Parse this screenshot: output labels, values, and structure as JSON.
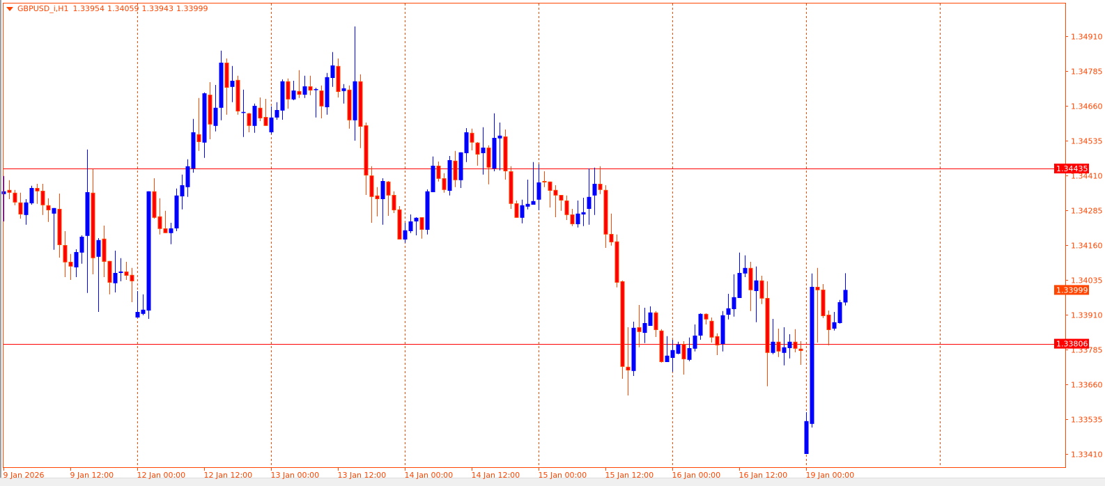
{
  "header": {
    "symbol_timeframe": "GBPUSD_i,H1",
    "ohlc": [
      "1.33954",
      "1.34059",
      "1.33943",
      "1.33999"
    ],
    "menu_icon": "triangle-down-icon"
  },
  "colors": {
    "frame": "#ff4500",
    "bull": "#0000ff",
    "bear_body": "#ff0000",
    "bear_outline": "#ff4500",
    "level_line": "#ff0000",
    "current_price_bg": "#ff4500",
    "axis_text": "#ff4500"
  },
  "chart_data": {
    "type": "candlestick",
    "title": "GBPUSD_i,H1",
    "timeframe": "H1",
    "grid": "vertical dashed day separators",
    "ylim": [
      1.3336,
      1.3503
    ],
    "y_ticks": [
      "1.34910",
      "1.34785",
      "1.34660",
      "1.34535",
      "1.34410",
      "1.34285",
      "1.34160",
      "1.34035",
      "1.33910",
      "1.33785",
      "1.33660",
      "1.33535",
      "1.33410"
    ],
    "x_ticks": [
      {
        "label": "9 Jan 2026",
        "bar": 0
      },
      {
        "label": "9 Jan 12:00",
        "bar": 12
      },
      {
        "label": "12 Jan 00:00",
        "bar": 24
      },
      {
        "label": "12 Jan 12:00",
        "bar": 36
      },
      {
        "label": "13 Jan 00:00",
        "bar": 48
      },
      {
        "label": "13 Jan 12:00",
        "bar": 60
      },
      {
        "label": "14 Jan 00:00",
        "bar": 72
      },
      {
        "label": "14 Jan 12:00",
        "bar": 84
      },
      {
        "label": "15 Jan 00:00",
        "bar": 96
      },
      {
        "label": "15 Jan 12:00",
        "bar": 108
      },
      {
        "label": "16 Jan 00:00",
        "bar": 120
      },
      {
        "label": "16 Jan 12:00",
        "bar": 132
      },
      {
        "label": "19 Jan 00:00",
        "bar": 144
      }
    ],
    "day_separator_bars": [
      24,
      48,
      72,
      96,
      120,
      144,
      168
    ],
    "horizontal_levels": [
      {
        "price": "1.34435"
      },
      {
        "price": "1.33806"
      }
    ],
    "current_price": "1.33999",
    "candles_ohlc": [
      [
        1.34343,
        1.34408,
        1.34245,
        1.34353
      ],
      [
        1.34358,
        1.34393,
        1.34325,
        1.34348
      ],
      [
        1.34348,
        1.34358,
        1.34303,
        1.34313
      ],
      [
        1.34313,
        1.34348,
        1.34255,
        1.3427
      ],
      [
        1.34268,
        1.34325,
        1.34233,
        1.34313
      ],
      [
        1.3431,
        1.34373,
        1.34305,
        1.34365
      ],
      [
        1.34365,
        1.3438,
        1.34308,
        1.34353
      ],
      [
        1.34355,
        1.3438,
        1.34268,
        1.34303
      ],
      [
        1.34303,
        1.34328,
        1.34243,
        1.34285
      ],
      [
        1.34273,
        1.34293,
        1.34143,
        1.34293
      ],
      [
        1.3429,
        1.34345,
        1.34115,
        1.3416
      ],
      [
        1.3416,
        1.3421,
        1.34045,
        1.34098
      ],
      [
        1.341,
        1.34128,
        1.34035,
        1.34083
      ],
      [
        1.3408,
        1.34145,
        1.34045,
        1.34135
      ],
      [
        1.34133,
        1.34195,
        1.34093,
        1.3419
      ],
      [
        1.34193,
        1.34503,
        1.33988,
        1.3435
      ],
      [
        1.34348,
        1.34433,
        1.34055,
        1.34113
      ],
      [
        1.34118,
        1.34185,
        1.3392,
        1.34178
      ],
      [
        1.34183,
        1.3423,
        1.34045,
        1.341
      ],
      [
        1.34103,
        1.34103,
        1.33983,
        1.34025
      ],
      [
        1.34023,
        1.3414,
        1.3399,
        1.3406
      ],
      [
        1.3406,
        1.34113,
        1.3403,
        1.34065
      ],
      [
        1.34065,
        1.341,
        1.34035,
        1.3405
      ],
      [
        1.34053,
        1.34078,
        1.33955,
        1.3403
      ],
      [
        1.339,
        1.33995,
        1.339,
        1.3392
      ],
      [
        1.33913,
        1.33983,
        1.33908,
        1.33928
      ],
      [
        1.33925,
        1.34353,
        1.33895,
        1.34353
      ],
      [
        1.34353,
        1.344,
        1.34255,
        1.34258
      ],
      [
        1.34263,
        1.34328,
        1.34198,
        1.34218
      ],
      [
        1.3422,
        1.34283,
        1.34203,
        1.34203
      ],
      [
        1.34203,
        1.3424,
        1.34163,
        1.3422
      ],
      [
        1.3422,
        1.34363,
        1.3421,
        1.34338
      ],
      [
        1.34335,
        1.34413,
        1.34288,
        1.34375
      ],
      [
        1.34368,
        1.34468,
        1.34333,
        1.34443
      ],
      [
        1.34435,
        1.34613,
        1.3442,
        1.34565
      ],
      [
        1.34558,
        1.34688,
        1.34498,
        1.3453
      ],
      [
        1.34528,
        1.34708,
        1.34473,
        1.34705
      ],
      [
        1.347,
        1.34745,
        1.3454,
        1.34593
      ],
      [
        1.34588,
        1.34735,
        1.34568,
        1.34653
      ],
      [
        1.34653,
        1.34858,
        1.34608,
        1.34815
      ],
      [
        1.34815,
        1.3483,
        1.34628,
        1.34725
      ],
      [
        1.34728,
        1.34803,
        1.34673,
        1.3475
      ],
      [
        1.34753,
        1.34768,
        1.34628,
        1.3464
      ],
      [
        1.34635,
        1.34718,
        1.34548,
        1.34638
      ],
      [
        1.34633,
        1.34635,
        1.34565,
        1.34588
      ],
      [
        1.34588,
        1.34668,
        1.34563,
        1.3466
      ],
      [
        1.34653,
        1.3469,
        1.34605,
        1.34615
      ],
      [
        1.3462,
        1.34685,
        1.34588,
        1.34588
      ],
      [
        1.34565,
        1.34658,
        1.34558,
        1.34618
      ],
      [
        1.34618,
        1.34673,
        1.3461,
        1.34645
      ],
      [
        1.34643,
        1.34755,
        1.3461,
        1.34748
      ],
      [
        1.34748,
        1.34758,
        1.3465,
        1.34683
      ],
      [
        1.34683,
        1.3475,
        1.3468,
        1.34715
      ],
      [
        1.34713,
        1.34788,
        1.34688,
        1.347
      ],
      [
        1.347,
        1.34768,
        1.34688,
        1.3473
      ],
      [
        1.3473,
        1.34768,
        1.34698,
        1.34715
      ],
      [
        1.34718,
        1.34725,
        1.34618,
        1.3472
      ],
      [
        1.34715,
        1.34733,
        1.34615,
        1.34658
      ],
      [
        1.34655,
        1.34778,
        1.34628,
        1.34763
      ],
      [
        1.3476,
        1.34853,
        1.34728,
        1.34805
      ],
      [
        1.34803,
        1.3483,
        1.3469,
        1.3471
      ],
      [
        1.34713,
        1.34738,
        1.34668,
        1.34723
      ],
      [
        1.34718,
        1.34733,
        1.34578,
        1.34608
      ],
      [
        1.34608,
        1.34945,
        1.34535,
        1.34748
      ],
      [
        1.34748,
        1.34773,
        1.34508,
        1.34585
      ],
      [
        1.3459,
        1.346,
        1.3434,
        1.3441
      ],
      [
        1.3441,
        1.34443,
        1.3424,
        1.34333
      ],
      [
        1.34338,
        1.34368,
        1.34263,
        1.34325
      ],
      [
        1.34325,
        1.344,
        1.34233,
        1.3439
      ],
      [
        1.34388,
        1.3439,
        1.34265,
        1.34338
      ],
      [
        1.3434,
        1.34353,
        1.34275,
        1.34285
      ],
      [
        1.34288,
        1.343,
        1.3418,
        1.3418
      ],
      [
        1.3418,
        1.3424,
        1.34168,
        1.34213
      ],
      [
        1.3421,
        1.3427,
        1.34203,
        1.34245
      ],
      [
        1.34245,
        1.3426,
        1.34195,
        1.34258
      ],
      [
        1.3426,
        1.3426,
        1.34183,
        1.34215
      ],
      [
        1.34215,
        1.3436,
        1.34198,
        1.34353
      ],
      [
        1.3435,
        1.34478,
        1.3435,
        1.34445
      ],
      [
        1.34445,
        1.3446,
        1.34388,
        1.34398
      ],
      [
        1.344,
        1.34418,
        1.34348,
        1.34358
      ],
      [
        1.34355,
        1.3448,
        1.34338,
        1.34465
      ],
      [
        1.34463,
        1.34498,
        1.34368,
        1.34393
      ],
      [
        1.34393,
        1.34493,
        1.34365,
        1.34493
      ],
      [
        1.3449,
        1.3458,
        1.34458,
        1.34565
      ],
      [
        1.34563,
        1.34578,
        1.345,
        1.34528
      ],
      [
        1.34528,
        1.3453,
        1.34445,
        1.34485
      ],
      [
        1.3449,
        1.34583,
        1.34413,
        1.3451
      ],
      [
        1.3451,
        1.34518,
        1.34378,
        1.34438
      ],
      [
        1.34435,
        1.34633,
        1.34425,
        1.34545
      ],
      [
        1.34543,
        1.346,
        1.34428,
        1.34553
      ],
      [
        1.3455,
        1.34575,
        1.34395,
        1.34425
      ],
      [
        1.34425,
        1.34443,
        1.3429,
        1.34308
      ],
      [
        1.3431,
        1.3432,
        1.34258,
        1.34258
      ],
      [
        1.34258,
        1.34323,
        1.34238,
        1.34303
      ],
      [
        1.34298,
        1.34395,
        1.34288,
        1.34308
      ],
      [
        1.34305,
        1.34458,
        1.34305,
        1.34318
      ],
      [
        1.34323,
        1.3445,
        1.34285,
        1.34385
      ],
      [
        1.3439,
        1.34425,
        1.34368,
        1.34385
      ],
      [
        1.34388,
        1.34388,
        1.34295,
        1.34355
      ],
      [
        1.34358,
        1.34375,
        1.3426,
        1.34338
      ],
      [
        1.3434,
        1.3434,
        1.34283,
        1.3432
      ],
      [
        1.3432,
        1.34338,
        1.3425,
        1.34268
      ],
      [
        1.3427,
        1.3429,
        1.34228,
        1.34235
      ],
      [
        1.34235,
        1.3432,
        1.34223,
        1.34273
      ],
      [
        1.3427,
        1.3433,
        1.34228,
        1.34278
      ],
      [
        1.3429,
        1.34435,
        1.34233,
        1.34333
      ],
      [
        1.34338,
        1.34438,
        1.34268,
        1.3438
      ],
      [
        1.3438,
        1.34443,
        1.34343,
        1.34358
      ],
      [
        1.34358,
        1.34375,
        1.3415,
        1.34198
      ],
      [
        1.342,
        1.34273,
        1.34158,
        1.3417
      ],
      [
        1.34173,
        1.34198,
        1.34008,
        1.34025
      ],
      [
        1.3403,
        1.34033,
        1.3368,
        1.33723
      ],
      [
        1.33723,
        1.33865,
        1.3362,
        1.3371
      ],
      [
        1.33708,
        1.33885,
        1.3369,
        1.33863
      ],
      [
        1.33865,
        1.33945,
        1.33793,
        1.33848
      ],
      [
        1.33845,
        1.33935,
        1.33808,
        1.3388
      ],
      [
        1.3387,
        1.3394,
        1.3387,
        1.33918
      ],
      [
        1.33918,
        1.33923,
        1.3383,
        1.33855
      ],
      [
        1.33853,
        1.33858,
        1.33738,
        1.3374
      ],
      [
        1.3374,
        1.33833,
        1.3374,
        1.33763
      ],
      [
        1.33755,
        1.3382,
        1.33705,
        1.33783
      ],
      [
        1.3377,
        1.33813,
        1.33768,
        1.33803
      ],
      [
        1.33805,
        1.33815,
        1.33695,
        1.3375
      ],
      [
        1.33748,
        1.33828,
        1.33743,
        1.3379
      ],
      [
        1.33788,
        1.33875,
        1.33778,
        1.33835
      ],
      [
        1.33835,
        1.33915,
        1.3382,
        1.33913
      ],
      [
        1.33913,
        1.33915,
        1.33875,
        1.33893
      ],
      [
        1.33888,
        1.339,
        1.3381,
        1.33828
      ],
      [
        1.33833,
        1.33843,
        1.33765,
        1.338
      ],
      [
        1.33805,
        1.33923,
        1.33778,
        1.33908
      ],
      [
        1.3391,
        1.33985,
        1.33893,
        1.33933
      ],
      [
        1.3393,
        1.34055,
        1.33903,
        1.33973
      ],
      [
        1.3397,
        1.34133,
        1.3397,
        1.3406
      ],
      [
        1.34058,
        1.34123,
        1.34045,
        1.34078
      ],
      [
        1.34078,
        1.341,
        1.33923,
        1.33998
      ],
      [
        1.33995,
        1.34083,
        1.33883,
        1.34033
      ],
      [
        1.34033,
        1.3405,
        1.33948,
        1.33968
      ],
      [
        1.3397,
        1.3403,
        1.33653,
        1.33773
      ],
      [
        1.33773,
        1.33895,
        1.33768,
        1.33813
      ],
      [
        1.33813,
        1.3386,
        1.33758,
        1.33778
      ],
      [
        1.33773,
        1.33865,
        1.33728,
        1.33793
      ],
      [
        1.3379,
        1.3384,
        1.33753,
        1.33813
      ],
      [
        1.33813,
        1.33858,
        1.33775,
        1.33788
      ],
      [
        1.33788,
        1.33815,
        1.3373,
        1.3378
      ],
      [
        1.3341,
        1.3356,
        1.3341,
        1.33528
      ],
      [
        1.33518,
        1.34058,
        1.33505,
        1.3401
      ],
      [
        1.3401,
        1.34078,
        1.3381,
        1.33998
      ],
      [
        1.34,
        1.3402,
        1.33898,
        1.33905
      ],
      [
        1.3391,
        1.33925,
        1.338,
        1.33855
      ],
      [
        1.3386,
        1.3392,
        1.33853,
        1.33883
      ],
      [
        1.3388,
        1.33963,
        1.33878,
        1.33955
      ],
      [
        1.33954,
        1.34059,
        1.33943,
        1.33999
      ]
    ]
  }
}
